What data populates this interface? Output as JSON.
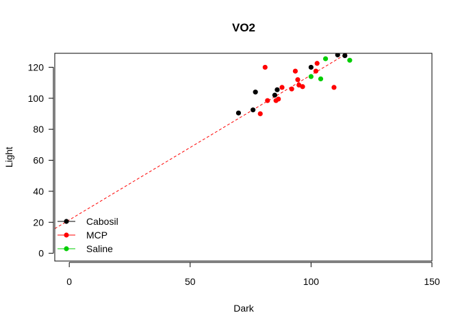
{
  "chart_data": {
    "type": "scatter",
    "title": "VO2",
    "xlabel": "Dark",
    "ylabel": "Light",
    "xlim": [
      -6,
      150
    ],
    "ylim": [
      -5,
      129
    ],
    "x_ticks": [
      0,
      50,
      100,
      150
    ],
    "y_ticks": [
      0,
      20,
      40,
      60,
      80,
      100,
      120
    ],
    "grid": false,
    "legend_position": "bottom-left",
    "series": [
      {
        "name": "Cabosil",
        "color": "#000000",
        "points": [
          [
            70,
            90.5
          ],
          [
            76,
            92.5
          ],
          [
            77,
            104
          ],
          [
            85,
            102
          ],
          [
            86,
            105.5
          ],
          [
            100,
            120
          ],
          [
            111,
            128
          ],
          [
            114,
            127.5
          ]
        ]
      },
      {
        "name": "MCP",
        "color": "#ff0000",
        "points": [
          [
            79,
            90
          ],
          [
            81,
            120
          ],
          [
            82,
            98.5
          ],
          [
            85.5,
            98.5
          ],
          [
            86.5,
            99.5
          ],
          [
            88,
            107
          ],
          [
            92,
            106
          ],
          [
            93.5,
            117.5
          ],
          [
            94.5,
            112
          ],
          [
            95,
            108.5
          ],
          [
            96.5,
            107.5
          ],
          [
            102,
            117.5
          ],
          [
            102.5,
            122.5
          ],
          [
            109.5,
            107
          ]
        ]
      },
      {
        "name": "Saline",
        "color": "#00cd00",
        "points": [
          [
            100,
            114
          ],
          [
            104,
            112.5
          ],
          [
            106,
            125.5
          ],
          [
            116,
            124.5
          ]
        ]
      }
    ],
    "trendline": {
      "color": "#ff0000",
      "style": "dashed",
      "intercept": 21.5,
      "slope": 0.935
    }
  }
}
